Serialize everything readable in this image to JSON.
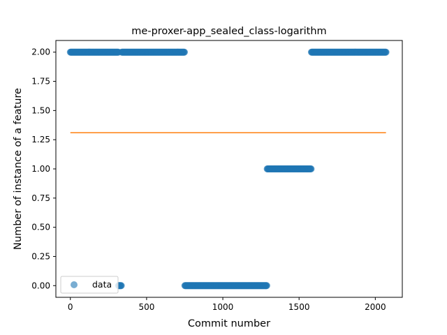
{
  "chart_data": {
    "type": "scatter",
    "title": "me-proxer-app_sealed_class-logarithm",
    "xlabel": "Commit number",
    "ylabel": "Number of instance of a feature",
    "xlim": [
      -95,
      2177
    ],
    "ylim": [
      -0.1,
      2.1
    ],
    "xticks": [
      0,
      500,
      1000,
      1500,
      2000
    ],
    "xtick_labels": [
      "0",
      "500",
      "1000",
      "1500",
      "2000"
    ],
    "yticks": [
      0.0,
      0.25,
      0.5,
      0.75,
      1.0,
      1.25,
      1.5,
      1.75,
      2.0
    ],
    "ytick_labels": [
      "0.00",
      "0.25",
      "0.50",
      "0.75",
      "1.00",
      "1.25",
      "1.50",
      "1.75",
      "2.00"
    ],
    "grid": false,
    "legend_position": "lower-left",
    "colors": {
      "data": "#1f77b4",
      "fit": "#ff7f0e"
    },
    "series": [
      {
        "name": "data",
        "kind": "points",
        "segments": [
          {
            "x_start": 0,
            "x_end": 315,
            "y": 2.0
          },
          {
            "x_start": 316,
            "x_end": 336,
            "y": 0.0
          },
          {
            "x_start": 337,
            "x_end": 750,
            "y": 2.0
          },
          {
            "x_start": 751,
            "x_end": 1290,
            "y": 0.0
          },
          {
            "x_start": 1291,
            "x_end": 1580,
            "y": 1.0
          },
          {
            "x_start": 1581,
            "x_end": 2070,
            "y": 2.0
          }
        ]
      },
      {
        "kind": "line",
        "x": [
          0,
          2070
        ],
        "y": [
          1.31,
          1.31
        ]
      }
    ]
  }
}
